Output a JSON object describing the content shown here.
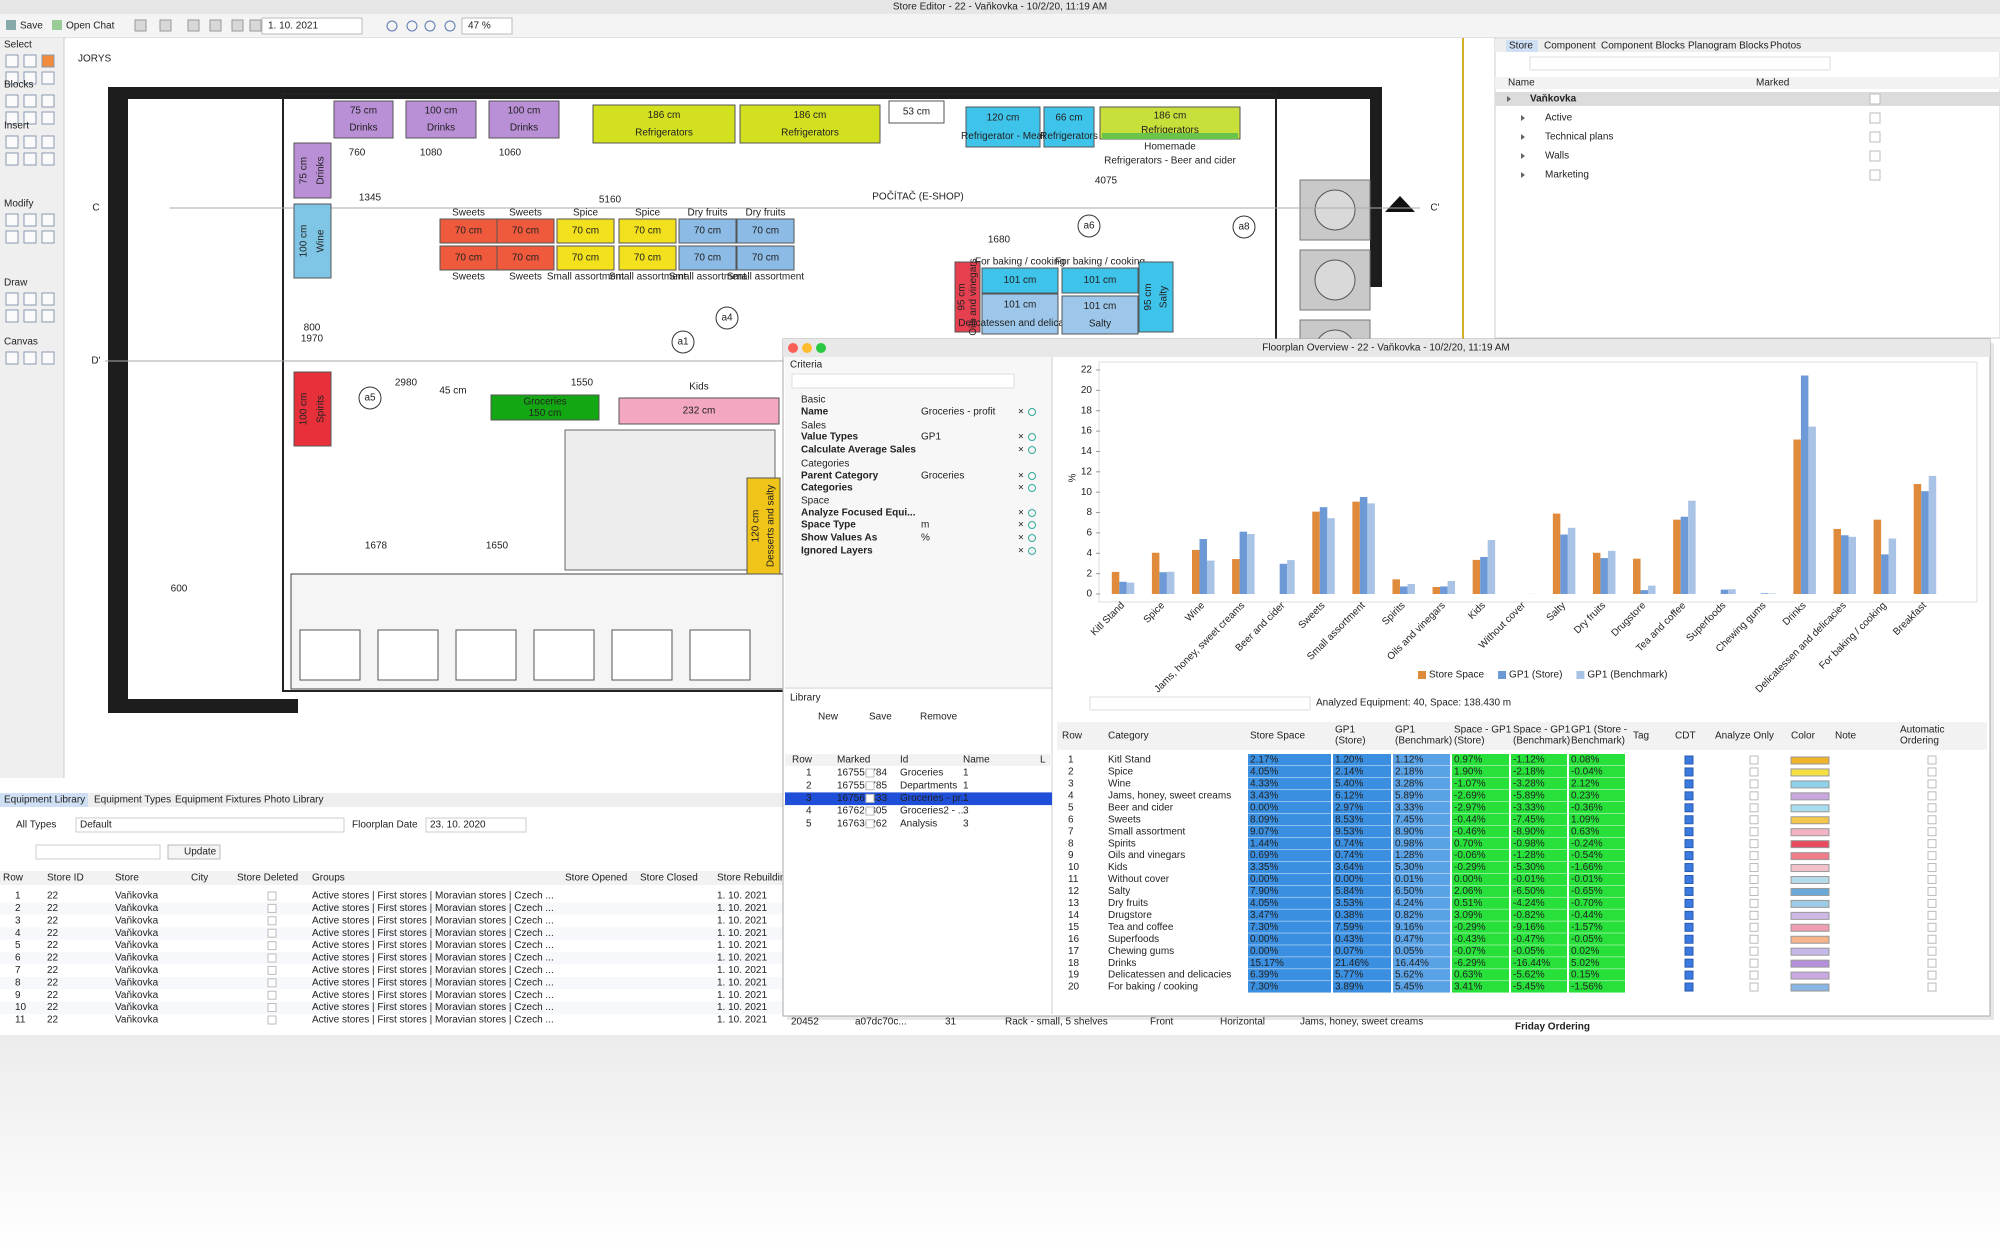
{
  "window": {
    "title": "Store Editor - 22 - Vaňkovka - 10/2/20, 11:19 AM"
  },
  "toolbar": {
    "save": "Save",
    "open_chat": "Open Chat",
    "date": "1. 10. 2021",
    "zoom": "47 %"
  },
  "palette": {
    "sections": [
      "Select",
      "Blocks",
      "Insert",
      "Modify",
      "Draw",
      "Canvas"
    ]
  },
  "floorplan": {
    "room_label": "JORYS",
    "fixtures": [
      {
        "size": "75 cm",
        "name": "Drinks",
        "color": "#b98fd6"
      },
      {
        "size": "100 cm",
        "name": "Drinks",
        "color": "#b98fd6"
      },
      {
        "size": "100 cm",
        "name": "Drinks",
        "color": "#b98fd6"
      },
      {
        "size": "186 cm",
        "name": "Refrigerators",
        "color": "#d2e01f"
      },
      {
        "size": "186 cm",
        "name": "Refrigerators",
        "color": "#d2e01f"
      },
      {
        "size": "53 cm",
        "color": "#ffffff"
      },
      {
        "size": "120 cm",
        "name": "Refrigerator - Meat",
        "color": "#3ec3ea"
      },
      {
        "size": "66 cm",
        "name": "Refrigerators",
        "color": "#3ec3ea"
      },
      {
        "size": "186 cm",
        "name": "Refrigerators",
        "color": "#c9df3a",
        "band": "Homemade",
        "caption_below": "Refrigerators - Beer and cider"
      },
      {
        "size": "75 cm",
        "name": "Drinks",
        "color": "#b98fd6"
      },
      {
        "size": "100 cm",
        "name": "Wine",
        "color": "#7fc6e6"
      },
      {
        "size": "100 cm",
        "name": "Spirits",
        "color": "#e8303b"
      },
      {
        "size": "70 cm",
        "caption": "Sweets",
        "color": "#f05a3c"
      },
      {
        "size": "70 cm",
        "caption": "Sweets",
        "color": "#f05a3c"
      },
      {
        "size": "70 cm",
        "caption": "Spice",
        "color": "#f2e11c"
      },
      {
        "size": "70 cm",
        "caption": "Spice",
        "color": "#f2e11c"
      },
      {
        "size": "70 cm",
        "caption": "Dry fruits",
        "color": "#8cbce6"
      },
      {
        "size": "70 cm",
        "caption": "Dry fruits",
        "color": "#8cbce6"
      },
      {
        "size": "70 cm",
        "caption_below": "Sweets",
        "color": "#f05a3c"
      },
      {
        "size": "70 cm",
        "caption_below": "Sweets",
        "color": "#f05a3c"
      },
      {
        "size": "70 cm",
        "caption_below": "Small assortment",
        "color": "#f2e11c"
      },
      {
        "size": "70 cm",
        "caption_below": "Small assortment",
        "color": "#f2e11c"
      },
      {
        "size": "70 cm",
        "caption_below": "Small assortment",
        "color": "#8cbce6"
      },
      {
        "size": "70 cm",
        "caption_below": "Small assortment",
        "color": "#8cbce6"
      },
      {
        "name": "Groceries",
        "size": "150 cm",
        "color": "#13a813"
      },
      {
        "size": "232 cm",
        "color": "#f3a7c0"
      },
      {
        "size": "120 cm",
        "name": "Desserts and salty",
        "color": "#f0c419"
      },
      {
        "size": "95 cm",
        "name": "Oils and vinegars",
        "color": "#e64050"
      },
      {
        "size": "101 cm",
        "caption": "For baking / cooking",
        "color": "#3ec3ea"
      },
      {
        "size": "101 cm",
        "caption": "For baking / cooking",
        "color": "#3ec3ea"
      },
      {
        "size": "101 cm",
        "name": "Delicatessen and delicacies",
        "color": "#9cc7ea"
      },
      {
        "size": "101 cm",
        "name": "Salty",
        "color": "#9cc7ea"
      },
      {
        "size": "95 cm",
        "name": "Salty",
        "color": "#3ec3ea"
      }
    ],
    "markers": [
      "C",
      "C'",
      "D'",
      "a1",
      "a4",
      "a5",
      "a6",
      "a8"
    ],
    "dimensions": [
      "760",
      "1080",
      "1060",
      "1345",
      "5160",
      "2980",
      "1550",
      "1678",
      "1650",
      "1680",
      "4075",
      "800",
      "1970",
      "600"
    ],
    "notes": [
      "POČÍTAČ (E-SHOP)",
      "Kids",
      "45 cm"
    ]
  },
  "right_panel": {
    "tabs": [
      "Store",
      "Component",
      "Component Blocks",
      "Planogram Blocks",
      "Photos"
    ],
    "columns": [
      "Name",
      "Marked"
    ],
    "tree": [
      "Vaňkovka",
      "Active",
      "Technical plans",
      "Walls",
      "Marketing"
    ]
  },
  "equipment_library": {
    "tabs": [
      "Equipment Library",
      "Equipment Types",
      "Equipment Fixtures",
      "Photo Library"
    ],
    "all_types": "All Types",
    "default": "Default",
    "floorplan_date_label": "Floorplan Date",
    "floorplan_date": "23. 10. 2020",
    "update": "Update",
    "columns": [
      "Row",
      "Store ID",
      "Store",
      "City",
      "Store Deleted",
      "Groups",
      "Store Opened",
      "Store Closed",
      "Store Rebuilding"
    ],
    "rows": [
      [
        1,
        22,
        "Vaňkovka",
        "Active stores | First stores | Moravian stores | Czech ...",
        "1. 10. 2021"
      ],
      [
        2,
        22,
        "Vaňkovka",
        "Active stores | First stores | Moravian stores | Czech ...",
        "1. 10. 2021"
      ],
      [
        3,
        22,
        "Vaňkovka",
        "Active stores | First stores | Moravian stores | Czech ...",
        "1. 10. 2021"
      ],
      [
        4,
        22,
        "Vaňkovka",
        "Active stores | First stores | Moravian stores | Czech ...",
        "1. 10. 2021"
      ],
      [
        5,
        22,
        "Vaňkovka",
        "Active stores | First stores | Moravian stores | Czech ...",
        "1. 10. 2021"
      ],
      [
        6,
        22,
        "Vaňkovka",
        "Active stores | First stores | Moravian stores | Czech ...",
        "1. 10. 2021"
      ],
      [
        7,
        22,
        "Vaňkovka",
        "Active stores | First stores | Moravian stores | Czech ...",
        "1. 10. 2021"
      ],
      [
        8,
        22,
        "Vaňkovka",
        "Active stores | First stores | Moravian stores | Czech ...",
        "1. 10. 2021"
      ],
      [
        9,
        22,
        "Vaňkovka",
        "Active stores | First stores | Moravian stores | Czech ...",
        "1. 10. 2021"
      ],
      [
        10,
        22,
        "Vaňkovka",
        "Active stores | First stores | Moravian stores | Czech ...",
        "1. 10. 2021"
      ],
      [
        11,
        22,
        "Vaňkovka",
        "Active stores | First stores | Moravian stores | Czech ...",
        "1. 10. 2021"
      ]
    ]
  },
  "overview": {
    "title": "Floorplan Overview - 22 - Vaňkovka - 10/2/20, 11:19 AM",
    "criteria": {
      "heading": "Criteria",
      "items": [
        {
          "group": "Basic"
        },
        {
          "label": "Name",
          "value": "Groceries - profit"
        },
        {
          "group": "Sales"
        },
        {
          "label": "Value Types",
          "value": "GP1"
        },
        {
          "label": "Calculate Average Sales"
        },
        {
          "group": "Categories"
        },
        {
          "label": "Parent Category",
          "value": "Groceries"
        },
        {
          "label": "Categories"
        },
        {
          "group": "Space"
        },
        {
          "label": "Analyze Focused Equi..."
        },
        {
          "label": "Space Type",
          "value": "m"
        },
        {
          "label": "Show Values As",
          "value": "%"
        },
        {
          "label": "Ignored Layers"
        }
      ]
    },
    "library": {
      "heading": "Library",
      "buttons": [
        "New",
        "Save",
        "Remove"
      ],
      "columns": [
        "Row",
        "Marked",
        "Id",
        "Name",
        "L"
      ],
      "rows": [
        [
          1,
          167555784,
          "Groceries",
          1
        ],
        [
          2,
          167555785,
          "Departments",
          1
        ],
        [
          3,
          167567833,
          "Groceries - pr...",
          1
        ],
        [
          4,
          167626305,
          "Groceries2 - ...",
          3
        ],
        [
          5,
          167636262,
          "Analysis",
          3
        ]
      ],
      "selected": 2
    },
    "summary": "Analyzed Equipment: 40, Space: 138.430 m",
    "table": {
      "columns": [
        [
          "Row"
        ],
        [
          "Category"
        ],
        [
          "Store Space"
        ],
        [
          "GP1",
          "(Store)"
        ],
        [
          "GP1",
          "(Benchmark)"
        ],
        [
          "Space - GP1",
          "(Store)"
        ],
        [
          "Space - GP1",
          "(Benchmark)"
        ],
        [
          "GP1 (Store -",
          "Benchmark)"
        ],
        [
          "Tag"
        ],
        [
          "CDT"
        ],
        [
          "Analyze Only"
        ],
        [
          "Color"
        ],
        [
          "Note"
        ],
        [
          "Automatic",
          "Ordering"
        ]
      ],
      "rows": [
        [
          1,
          "Kitl Stand",
          "2.17%",
          "1.20%",
          "1.12%",
          "0.97%",
          "-1.12%",
          "0.08%"
        ],
        [
          2,
          "Spice",
          "4.05%",
          "2.14%",
          "2.18%",
          "1.90%",
          "-2.18%",
          "-0.04%"
        ],
        [
          3,
          "Wine",
          "4.33%",
          "5.40%",
          "3.28%",
          "-1.07%",
          "-3.28%",
          "2.12%"
        ],
        [
          4,
          "Jams, honey, sweet creams",
          "3.43%",
          "6.12%",
          "5.89%",
          "-2.69%",
          "-5.89%",
          "0.23%"
        ],
        [
          5,
          "Beer and cider",
          "0.00%",
          "2.97%",
          "3.33%",
          "-2.97%",
          "-3.33%",
          "-0.36%"
        ],
        [
          6,
          "Sweets",
          "8.09%",
          "8.53%",
          "7.45%",
          "-0.44%",
          "-7.45%",
          "1.09%"
        ],
        [
          7,
          "Small assortment",
          "9.07%",
          "9.53%",
          "8.90%",
          "-0.46%",
          "-8.90%",
          "0.63%"
        ],
        [
          8,
          "Spirits",
          "1.44%",
          "0.74%",
          "0.98%",
          "0.70%",
          "-0.98%",
          "-0.24%"
        ],
        [
          9,
          "Oils and vinegars",
          "0.69%",
          "0.74%",
          "1.28%",
          "-0.06%",
          "-1.28%",
          "-0.54%"
        ],
        [
          10,
          "Kids",
          "3.35%",
          "3.64%",
          "5.30%",
          "-0.29%",
          "-5.30%",
          "-1.66%"
        ],
        [
          11,
          "Without cover",
          "0.00%",
          "0.00%",
          "0.01%",
          "0.00%",
          "-0.01%",
          "-0.01%"
        ],
        [
          12,
          "Salty",
          "7.90%",
          "5.84%",
          "6.50%",
          "2.06%",
          "-6.50%",
          "-0.65%"
        ],
        [
          13,
          "Dry fruits",
          "4.05%",
          "3.53%",
          "4.24%",
          "0.51%",
          "-4.24%",
          "-0.70%"
        ],
        [
          14,
          "Drugstore",
          "3.47%",
          "0.38%",
          "0.82%",
          "3.09%",
          "-0.82%",
          "-0.44%"
        ],
        [
          15,
          "Tea and coffee",
          "7.30%",
          "7.59%",
          "9.16%",
          "-0.29%",
          "-9.16%",
          "-1.57%"
        ],
        [
          16,
          "Superfoods",
          "0.00%",
          "0.43%",
          "0.47%",
          "-0.43%",
          "-0.47%",
          "-0.05%"
        ],
        [
          17,
          "Chewing gums",
          "0.00%",
          "0.07%",
          "0.05%",
          "-0.07%",
          "-0.05%",
          "0.02%"
        ],
        [
          18,
          "Drinks",
          "15.17%",
          "21.46%",
          "16.44%",
          "-6.29%",
          "-16.44%",
          "5.02%"
        ],
        [
          19,
          "Delicatessen and delicacies",
          "6.39%",
          "5.77%",
          "5.62%",
          "0.63%",
          "-5.62%",
          "0.15%"
        ],
        [
          20,
          "For baking / cooking",
          "7.30%",
          "3.89%",
          "5.45%",
          "3.41%",
          "-5.45%",
          "-1.56%"
        ]
      ],
      "row_colors": [
        "#f0b429",
        "#f5e042",
        "#8fd0ea",
        "#c9a8e0",
        "#a8dcef",
        "#f4c64a",
        "#f2b3c4",
        "#e84a5f",
        "#ef7d8a",
        "#f2c1cc",
        "#b5dbe8",
        "#6aa8d8",
        "#9fcbe6",
        "#cdb8e6",
        "#ef9db0",
        "#f5b48a",
        "#c6b9ea",
        "#b48fdc",
        "#caa8e2",
        "#89b6e2"
      ]
    },
    "footer": [
      "20452",
      "a07dc70c...",
      "31",
      "Rack - small, 5 shelves",
      "Front",
      "Horizontal",
      "Jams, honey, sweet creams",
      "Friday Ordering"
    ]
  },
  "chart_data": {
    "type": "bar",
    "ylabel": "%",
    "ylim": [
      0,
      22
    ],
    "yticks": [
      0,
      2,
      4,
      6,
      8,
      10,
      12,
      14,
      16,
      18,
      20,
      22
    ],
    "legend": "bottom",
    "categories": [
      "Kitl Stand",
      "Spice",
      "Wine",
      "Jams, honey, sweet creams",
      "Beer and cider",
      "Sweets",
      "Small assortment",
      "Spirits",
      "Oils and vinegars",
      "Kids",
      "Without cover",
      "Salty",
      "Dry fruits",
      "Drugstore",
      "Tea and coffee",
      "Superfoods",
      "Chewing gums",
      "Drinks",
      "Delicatessen and delicacies",
      "For baking / cooking",
      "Breakfast"
    ],
    "series": [
      {
        "name": "Store Space",
        "color": "#e08a3c",
        "values": [
          2.17,
          4.05,
          4.33,
          3.43,
          0,
          8.09,
          9.07,
          1.44,
          0.69,
          3.35,
          0,
          7.9,
          4.05,
          3.47,
          7.3,
          0,
          0,
          15.17,
          6.39,
          7.3,
          10.8
        ]
      },
      {
        "name": "GP1 (Store)",
        "color": "#6d9ad6",
        "values": [
          1.2,
          2.14,
          5.4,
          6.12,
          2.97,
          8.53,
          9.53,
          0.74,
          0.74,
          3.64,
          0,
          5.84,
          3.53,
          0.38,
          7.59,
          0.43,
          0.07,
          21.46,
          5.77,
          3.89,
          10.1
        ]
      },
      {
        "name": "GP1 (Benchmark)",
        "color": "#a9c3e6",
        "values": [
          1.12,
          2.18,
          3.28,
          5.89,
          3.33,
          7.45,
          8.9,
          0.98,
          1.28,
          5.3,
          0.01,
          6.5,
          4.24,
          0.82,
          9.16,
          0.47,
          0.05,
          16.44,
          5.62,
          5.45,
          11.6
        ]
      }
    ]
  }
}
